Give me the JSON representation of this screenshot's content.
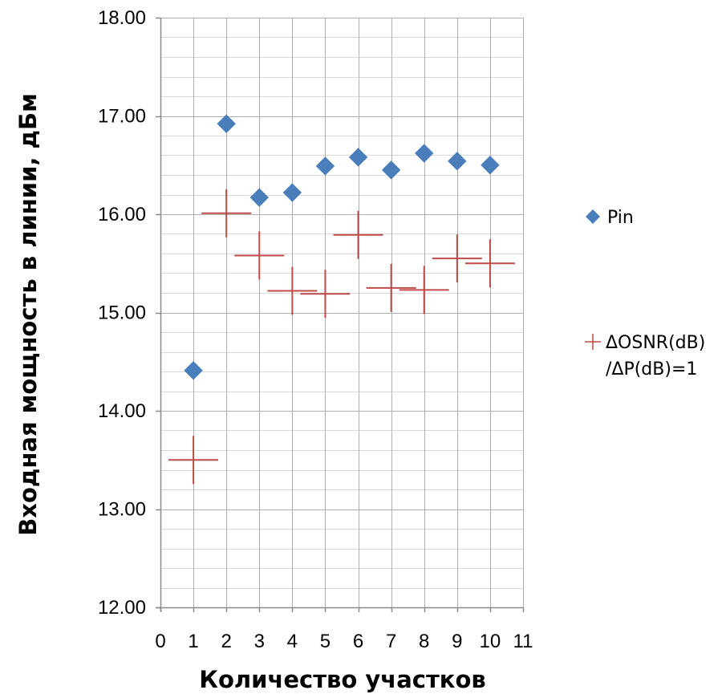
{
  "chart_data": {
    "type": "scatter",
    "xlabel": "Количество участков",
    "ylabel": "Входная мощность в линии, дБм",
    "xlim": [
      0,
      11
    ],
    "ylim": [
      12,
      18
    ],
    "x_ticks": [
      "0",
      "1",
      "2",
      "3",
      "4",
      "5",
      "6",
      "7",
      "8",
      "9",
      "10",
      "11"
    ],
    "y_ticks": [
      "12.00",
      "13.00",
      "14.00",
      "15.00",
      "16.00",
      "17.00",
      "18.00"
    ],
    "grid": {
      "major": true,
      "minor": true
    },
    "legend_position": "right",
    "series": [
      {
        "name": "Pin",
        "marker": "diamond",
        "color": "#4a7ebb",
        "x": [
          1,
          2,
          3,
          4,
          5,
          6,
          7,
          8,
          9,
          10
        ],
        "y": [
          14.41,
          16.92,
          16.17,
          16.22,
          16.49,
          16.58,
          16.45,
          16.62,
          16.54,
          16.5
        ]
      },
      {
        "name": "ΔOSNR(dB)/ΔP(dB)=1",
        "legend_lines": [
          "ΔOSNR(dB)",
          "/ΔP(dB)=1"
        ],
        "marker": "plus",
        "color": "#be4b48",
        "x": [
          1,
          2,
          3,
          4,
          5,
          6,
          7,
          8,
          9,
          10
        ],
        "y": [
          13.5,
          16.01,
          15.58,
          15.22,
          15.19,
          15.79,
          15.25,
          15.23,
          15.55,
          15.5
        ]
      }
    ]
  }
}
